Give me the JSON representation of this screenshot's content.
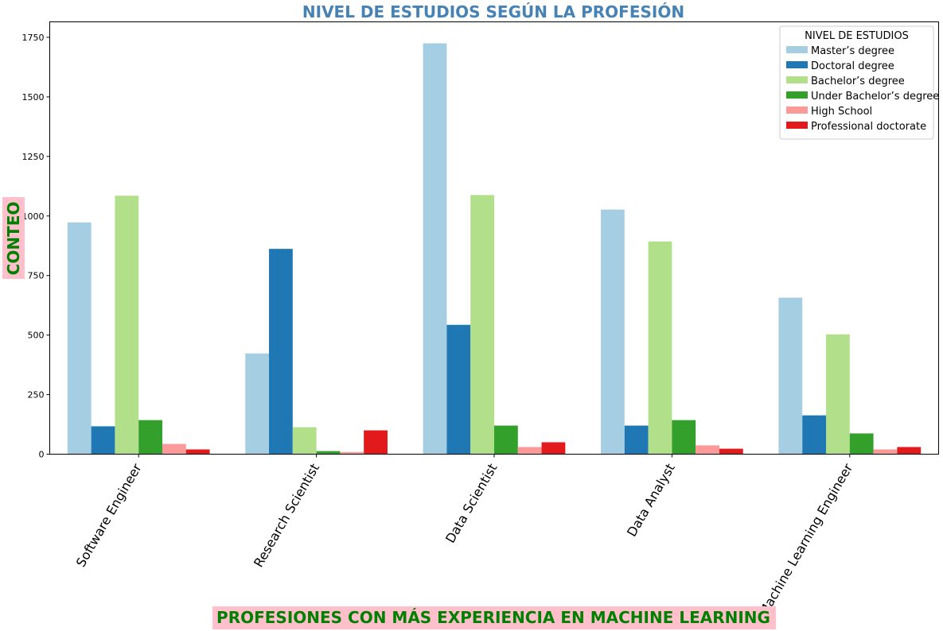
{
  "chart_data": {
    "type": "bar",
    "title": "NIVEL DE ESTUDIOS SEGÚN LA PROFESIÓN",
    "xlabel": "PROFESIONES CON MÁS EXPERIENCIA EN MACHINE LEARNING",
    "ylabel": "CONTEO",
    "ylim": [
      0,
      1815
    ],
    "yticks": [
      0,
      250,
      500,
      750,
      1000,
      1250,
      1500,
      1750
    ],
    "categories": [
      "Software Engineer",
      "Research Scientist",
      "Data Scientist",
      "Data Analyst",
      "Machine Learning Engineer"
    ],
    "legend": {
      "title": "NIVEL DE ESTUDIOS",
      "placement": "top-right"
    },
    "grid": false,
    "series": [
      {
        "name": "Master’s degree",
        "color": "#a6cee3",
        "values": [
          973,
          423,
          1725,
          1027,
          657
        ]
      },
      {
        "name": "Doctoral degree",
        "color": "#1f78b4",
        "values": [
          117,
          862,
          543,
          120,
          163
        ]
      },
      {
        "name": "Bachelor’s degree",
        "color": "#b2df8a",
        "values": [
          1085,
          113,
          1088,
          893,
          503
        ]
      },
      {
        "name": "Under Bachelor’s degree",
        "color": "#33a02c",
        "values": [
          143,
          13,
          120,
          143,
          87
        ]
      },
      {
        "name": "High School",
        "color": "#fb9a99",
        "values": [
          43,
          9,
          30,
          37,
          20
        ]
      },
      {
        "name": "Professional doctorate",
        "color": "#e31a1c",
        "values": [
          20,
          100,
          50,
          23,
          30
        ]
      }
    ]
  },
  "style": {
    "title_color": "#4682b4",
    "label_color": "#008000",
    "label_background": "#ffc0cb"
  }
}
